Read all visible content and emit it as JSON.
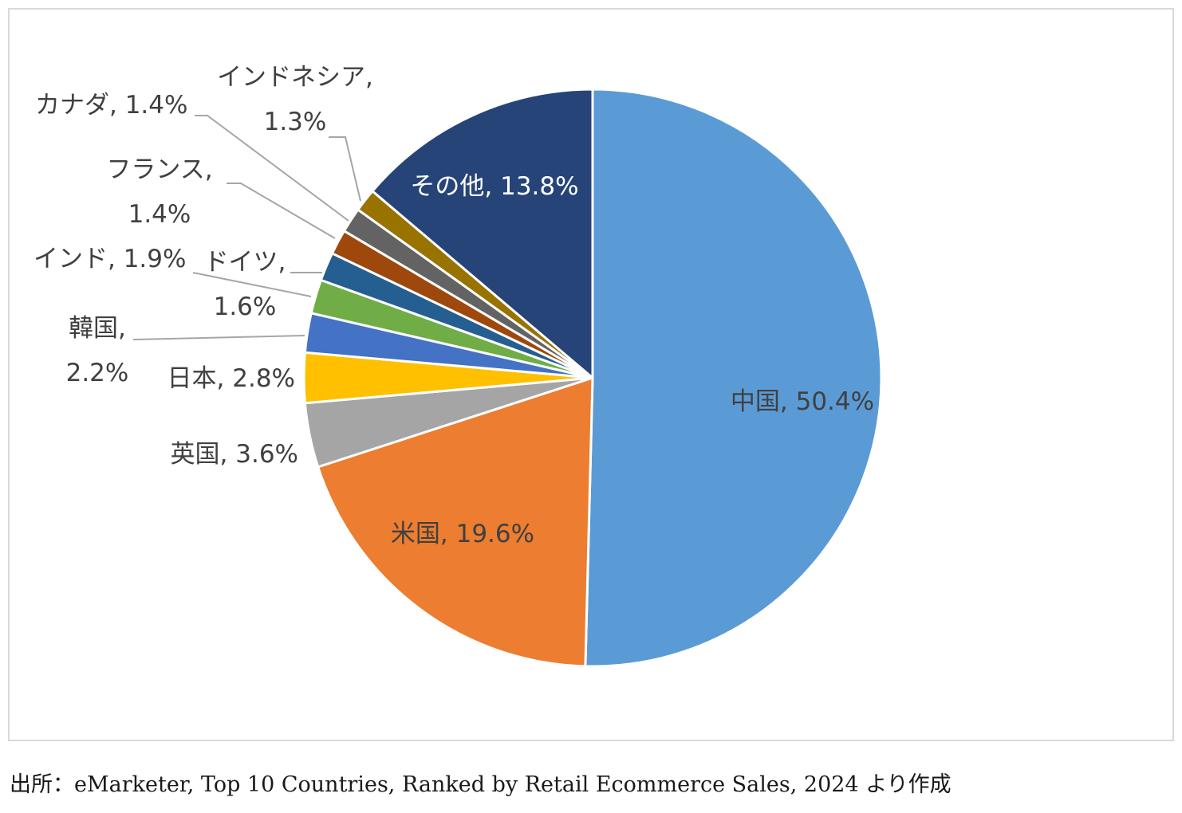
{
  "chart_data": {
    "type": "pie",
    "slices": [
      {
        "name": "中国",
        "value": 50.4,
        "label": "中国, 50.4%",
        "color": "#5b9bd5"
      },
      {
        "name": "米国",
        "value": 19.6,
        "label": "米国, 19.6%",
        "color": "#ed7d31"
      },
      {
        "name": "英国",
        "value": 3.6,
        "label": "英国, 3.6%",
        "color": "#a5a5a5"
      },
      {
        "name": "日本",
        "value": 2.8,
        "label": "日本, 2.8%",
        "color": "#ffc000"
      },
      {
        "name": "韓国",
        "value": 2.2,
        "label_lines": [
          "韓国,",
          "2.2%"
        ],
        "color": "#4472c4"
      },
      {
        "name": "インド",
        "value": 1.9,
        "label": "インド, 1.9%",
        "color": "#70ad47"
      },
      {
        "name": "ドイツ",
        "value": 1.6,
        "label_lines": [
          "ドイツ,",
          "1.6%"
        ],
        "color": "#255e91"
      },
      {
        "name": "フランス",
        "value": 1.4,
        "label_lines": [
          "フランス,",
          "1.4%"
        ],
        "color": "#9e480e"
      },
      {
        "name": "カナダ",
        "value": 1.4,
        "label": "カナダ, 1.4%",
        "color": "#636363"
      },
      {
        "name": "インドネシア",
        "value": 1.3,
        "label_lines": [
          "インドネシア,",
          "1.3%"
        ],
        "color": "#997300"
      },
      {
        "name": "その他",
        "value": 13.8,
        "label": "その他, 13.8%",
        "color": "#264478"
      }
    ],
    "start": "12 o'clock",
    "direction": "clockwise",
    "data_labels": true
  },
  "source_note": "出所：eMarketer, Top 10 Countries, Ranked by Retail Ecommerce Sales, 2024 より作成"
}
